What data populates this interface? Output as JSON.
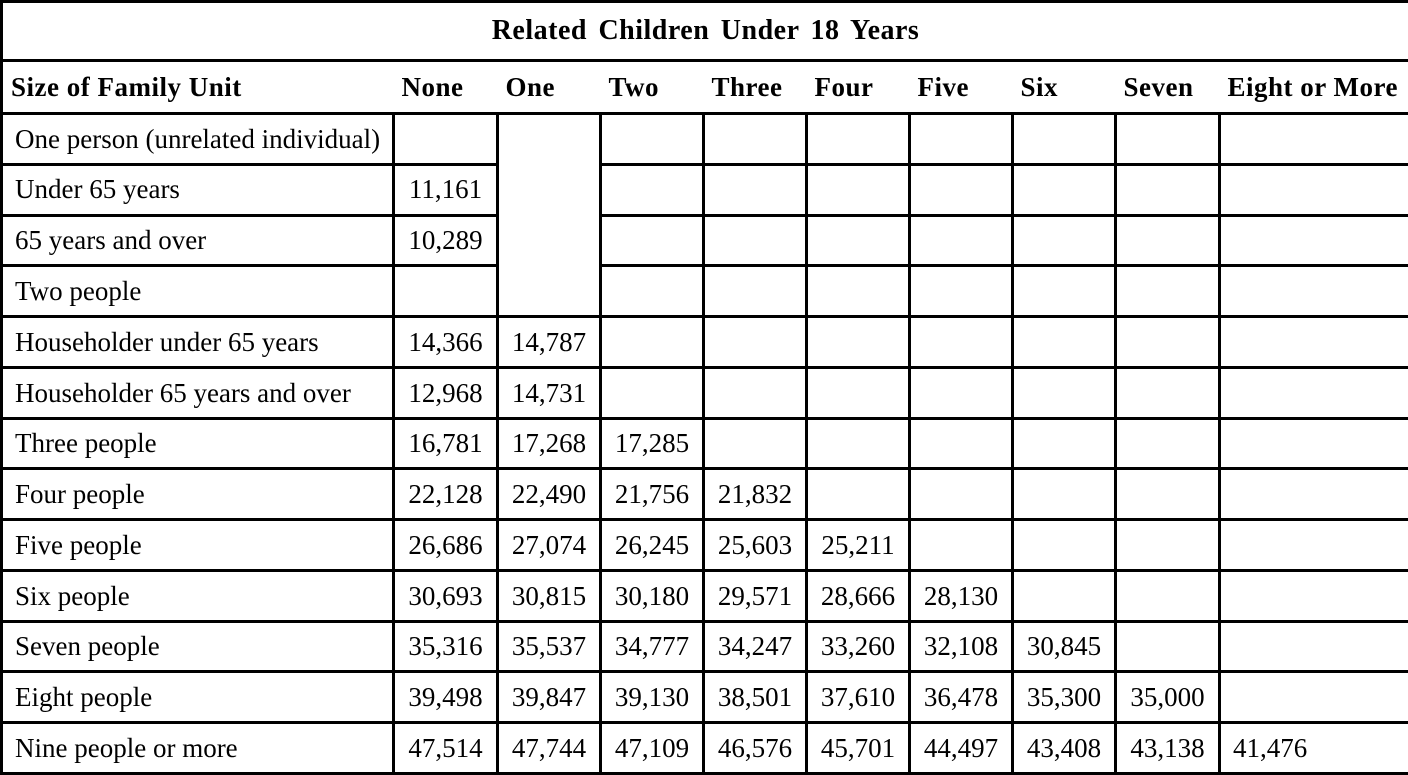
{
  "table": {
    "title": "Related Children Under 18 Years",
    "columns": [
      "Size of Family Unit",
      "None",
      "One",
      "Two",
      "Three",
      "Four",
      "Five",
      "Six",
      "Seven",
      "Eight or More"
    ],
    "rows": [
      {
        "label": "One person (unrelated individual)",
        "values": [
          "",
          "",
          "",
          "",
          "",
          "",
          "",
          "",
          ""
        ]
      },
      {
        "label": "Under 65 years",
        "values": [
          "11,161",
          "",
          "",
          "",
          "",
          "",
          "",
          "",
          ""
        ]
      },
      {
        "label": "65 years and over",
        "values": [
          "10,289",
          "",
          "",
          "",
          "",
          "",
          "",
          "",
          ""
        ]
      },
      {
        "label": "Two people",
        "values": [
          "",
          "",
          "",
          "",
          "",
          "",
          "",
          "",
          ""
        ]
      },
      {
        "label": "Householder under 65 years",
        "values": [
          "14,366",
          "14,787",
          "",
          "",
          "",
          "",
          "",
          "",
          ""
        ]
      },
      {
        "label": "Householder 65 years and over",
        "values": [
          "12,968",
          "14,731",
          "",
          "",
          "",
          "",
          "",
          "",
          ""
        ]
      },
      {
        "label": "Three people",
        "values": [
          "16,781",
          "17,268",
          "17,285",
          "",
          "",
          "",
          "",
          "",
          ""
        ]
      },
      {
        "label": "Four people",
        "values": [
          "22,128",
          "22,490",
          "21,756",
          "21,832",
          "",
          "",
          "",
          "",
          ""
        ]
      },
      {
        "label": "Five people",
        "values": [
          "26,686",
          "27,074",
          "26,245",
          "25,603",
          "25,211",
          "",
          "",
          "",
          ""
        ]
      },
      {
        "label": "Six people",
        "values": [
          "30,693",
          "30,815",
          "30,180",
          "29,571",
          "28,666",
          "28,130",
          "",
          "",
          ""
        ]
      },
      {
        "label": "Seven people",
        "values": [
          "35,316",
          "35,537",
          "34,777",
          "34,247",
          "33,260",
          "32,108",
          "30,845",
          "",
          ""
        ]
      },
      {
        "label": "Eight people",
        "values": [
          "39,498",
          "39,847",
          "39,130",
          "38,501",
          "37,610",
          "36,478",
          "35,300",
          "35,000",
          ""
        ]
      },
      {
        "label": "Nine people or more",
        "values": [
          "47,514",
          "47,744",
          "47,109",
          "46,576",
          "45,701",
          "44,497",
          "43,408",
          "43,138",
          "41,476"
        ]
      }
    ],
    "one_column_merge": {
      "column_index": 1,
      "start_row_index": 0,
      "row_span": 4
    },
    "colors": {
      "border": "#000000",
      "text": "#000000",
      "background": "#ffffff"
    }
  }
}
